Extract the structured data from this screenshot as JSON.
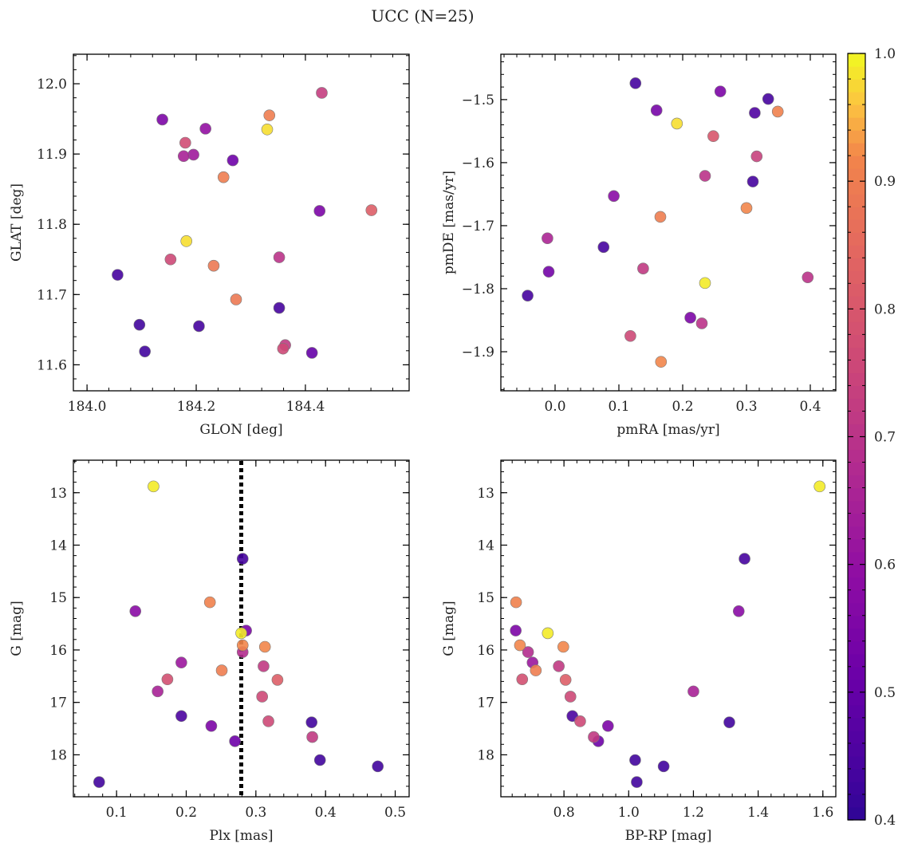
{
  "figure": {
    "title": "UCC (N=25)"
  },
  "colormap": "plasma",
  "colorbar": {
    "range": [
      0.4,
      1.0
    ],
    "ticks": [
      "0.4",
      "0.5",
      "0.6",
      "0.7",
      "0.8",
      "0.9",
      "1.0"
    ]
  },
  "chart_data": [
    {
      "type": "scatter",
      "xlabel": "GLON [deg]",
      "ylabel": "GLAT [deg]",
      "xlim": [
        183.975,
        184.59
      ],
      "ylim": [
        11.563,
        12.042
      ],
      "xticks": [
        "184.0",
        "184.2",
        "184.4"
      ],
      "yticks": [
        "11.6",
        "11.7",
        "11.8",
        "11.9",
        "12.0"
      ],
      "points": [
        {
          "x": 184.43,
          "y": 11.987,
          "c": 0.73
        },
        {
          "x": 184.334,
          "y": 11.955,
          "c": 0.9
        },
        {
          "x": 184.138,
          "y": 11.949,
          "c": 0.55
        },
        {
          "x": 184.217,
          "y": 11.936,
          "c": 0.6
        },
        {
          "x": 184.33,
          "y": 11.935,
          "c": 0.98
        },
        {
          "x": 184.18,
          "y": 11.916,
          "c": 0.77
        },
        {
          "x": 184.195,
          "y": 11.899,
          "c": 0.63
        },
        {
          "x": 184.177,
          "y": 11.897,
          "c": 0.65
        },
        {
          "x": 184.267,
          "y": 11.891,
          "c": 0.52
        },
        {
          "x": 184.25,
          "y": 11.867,
          "c": 0.9
        },
        {
          "x": 184.426,
          "y": 11.819,
          "c": 0.55
        },
        {
          "x": 184.521,
          "y": 11.82,
          "c": 0.82
        },
        {
          "x": 184.182,
          "y": 11.776,
          "c": 0.98
        },
        {
          "x": 184.153,
          "y": 11.75,
          "c": 0.76
        },
        {
          "x": 184.352,
          "y": 11.753,
          "c": 0.7
        },
        {
          "x": 184.232,
          "y": 11.741,
          "c": 0.89
        },
        {
          "x": 184.056,
          "y": 11.728,
          "c": 0.44
        },
        {
          "x": 184.273,
          "y": 11.693,
          "c": 0.89
        },
        {
          "x": 184.352,
          "y": 11.681,
          "c": 0.44
        },
        {
          "x": 184.096,
          "y": 11.657,
          "c": 0.43
        },
        {
          "x": 184.205,
          "y": 11.655,
          "c": 0.44
        },
        {
          "x": 184.363,
          "y": 11.628,
          "c": 0.72
        },
        {
          "x": 184.359,
          "y": 11.623,
          "c": 0.76
        },
        {
          "x": 184.106,
          "y": 11.619,
          "c": 0.43
        },
        {
          "x": 184.412,
          "y": 11.617,
          "c": 0.5
        }
      ]
    },
    {
      "type": "scatter",
      "xlabel": "pmRA [mas/yr]",
      "ylabel": "pmDE [mas/yr]",
      "xlim": [
        -0.085,
        0.44
      ],
      "ylim": [
        -1.962,
        -1.428
      ],
      "xticks": [
        "0.0",
        "0.1",
        "0.2",
        "0.3",
        "0.4"
      ],
      "yticks": [
        "−1.5",
        "−1.6",
        "−1.7",
        "−1.8",
        "−1.9"
      ],
      "points": [
        {
          "x": 0.126,
          "y": -1.474,
          "c": 0.44
        },
        {
          "x": 0.259,
          "y": -1.487,
          "c": 0.55
        },
        {
          "x": 0.334,
          "y": -1.499,
          "c": 0.44
        },
        {
          "x": 0.159,
          "y": -1.517,
          "c": 0.54
        },
        {
          "x": 0.313,
          "y": -1.521,
          "c": 0.46
        },
        {
          "x": 0.349,
          "y": -1.519,
          "c": 0.91
        },
        {
          "x": 0.191,
          "y": -1.538,
          "c": 0.98
        },
        {
          "x": 0.248,
          "y": -1.558,
          "c": 0.8
        },
        {
          "x": 0.316,
          "y": -1.59,
          "c": 0.74
        },
        {
          "x": 0.235,
          "y": -1.621,
          "c": 0.7
        },
        {
          "x": 0.31,
          "y": -1.63,
          "c": 0.44
        },
        {
          "x": 0.092,
          "y": -1.653,
          "c": 0.58
        },
        {
          "x": 0.3,
          "y": -1.672,
          "c": 0.92
        },
        {
          "x": 0.165,
          "y": -1.686,
          "c": 0.9
        },
        {
          "x": -0.012,
          "y": -1.72,
          "c": 0.66
        },
        {
          "x": 0.076,
          "y": -1.734,
          "c": 0.44
        },
        {
          "x": 0.138,
          "y": -1.768,
          "c": 0.72
        },
        {
          "x": -0.01,
          "y": -1.773,
          "c": 0.53
        },
        {
          "x": 0.396,
          "y": -1.782,
          "c": 0.7
        },
        {
          "x": 0.235,
          "y": -1.791,
          "c": 0.99
        },
        {
          "x": -0.043,
          "y": -1.811,
          "c": 0.44
        },
        {
          "x": 0.212,
          "y": -1.846,
          "c": 0.55
        },
        {
          "x": 0.23,
          "y": -1.855,
          "c": 0.7
        },
        {
          "x": 0.118,
          "y": -1.875,
          "c": 0.76
        },
        {
          "x": 0.166,
          "y": -1.916,
          "c": 0.92
        }
      ]
    },
    {
      "type": "scatter",
      "xlabel": "Plx [mas]",
      "ylabel": "G [mag]",
      "xlim": [
        0.038,
        0.52
      ],
      "ylim": [
        18.8,
        12.38
      ],
      "y_inverted": true,
      "xticks": [
        "0.1",
        "0.2",
        "0.3",
        "0.4",
        "0.5"
      ],
      "yticks": [
        "13",
        "14",
        "15",
        "16",
        "17",
        "18"
      ],
      "vline": {
        "x": 0.279,
        "style": "dotted",
        "color": "#000000"
      },
      "points": [
        {
          "x": 0.153,
          "y": 12.88,
          "c": 0.99
        },
        {
          "x": 0.281,
          "y": 14.26,
          "c": 0.44
        },
        {
          "x": 0.234,
          "y": 15.09,
          "c": 0.91
        },
        {
          "x": 0.127,
          "y": 15.26,
          "c": 0.58
        },
        {
          "x": 0.286,
          "y": 15.63,
          "c": 0.55
        },
        {
          "x": 0.279,
          "y": 15.68,
          "c": 0.99
        },
        {
          "x": 0.281,
          "y": 15.91,
          "c": 0.92
        },
        {
          "x": 0.313,
          "y": 15.94,
          "c": 0.92
        },
        {
          "x": 0.281,
          "y": 16.04,
          "c": 0.68
        },
        {
          "x": 0.193,
          "y": 16.24,
          "c": 0.62
        },
        {
          "x": 0.311,
          "y": 16.31,
          "c": 0.72
        },
        {
          "x": 0.251,
          "y": 16.39,
          "c": 0.9
        },
        {
          "x": 0.173,
          "y": 16.56,
          "c": 0.78
        },
        {
          "x": 0.331,
          "y": 16.57,
          "c": 0.82
        },
        {
          "x": 0.159,
          "y": 16.79,
          "c": 0.65
        },
        {
          "x": 0.309,
          "y": 16.89,
          "c": 0.76
        },
        {
          "x": 0.193,
          "y": 17.26,
          "c": 0.45
        },
        {
          "x": 0.318,
          "y": 17.36,
          "c": 0.76
        },
        {
          "x": 0.38,
          "y": 17.38,
          "c": 0.43
        },
        {
          "x": 0.236,
          "y": 17.45,
          "c": 0.55
        },
        {
          "x": 0.381,
          "y": 17.66,
          "c": 0.72
        },
        {
          "x": 0.27,
          "y": 17.74,
          "c": 0.52
        },
        {
          "x": 0.392,
          "y": 18.1,
          "c": 0.43
        },
        {
          "x": 0.475,
          "y": 18.22,
          "c": 0.43
        },
        {
          "x": 0.075,
          "y": 18.52,
          "c": 0.43
        }
      ]
    },
    {
      "type": "scatter",
      "xlabel": "BP-RP [mag]",
      "ylabel": "G [mag]",
      "xlim": [
        0.605,
        1.64
      ],
      "ylim": [
        18.8,
        12.38
      ],
      "y_inverted": true,
      "xticks": [
        "0.8",
        "1.0",
        "1.2",
        "1.4",
        "1.6"
      ],
      "yticks": [
        "13",
        "14",
        "15",
        "16",
        "17",
        "18"
      ],
      "points": [
        {
          "x": 1.59,
          "y": 12.88,
          "c": 0.99
        },
        {
          "x": 1.358,
          "y": 14.26,
          "c": 0.44
        },
        {
          "x": 0.652,
          "y": 15.09,
          "c": 0.91
        },
        {
          "x": 1.34,
          "y": 15.26,
          "c": 0.58
        },
        {
          "x": 0.651,
          "y": 15.63,
          "c": 0.55
        },
        {
          "x": 0.75,
          "y": 15.68,
          "c": 0.99
        },
        {
          "x": 0.664,
          "y": 15.91,
          "c": 0.92
        },
        {
          "x": 0.798,
          "y": 15.94,
          "c": 0.92
        },
        {
          "x": 0.689,
          "y": 16.04,
          "c": 0.68
        },
        {
          "x": 0.703,
          "y": 16.24,
          "c": 0.62
        },
        {
          "x": 0.784,
          "y": 16.31,
          "c": 0.72
        },
        {
          "x": 0.713,
          "y": 16.39,
          "c": 0.9
        },
        {
          "x": 0.671,
          "y": 16.56,
          "c": 0.78
        },
        {
          "x": 0.805,
          "y": 16.57,
          "c": 0.82
        },
        {
          "x": 1.2,
          "y": 16.79,
          "c": 0.65
        },
        {
          "x": 0.82,
          "y": 16.89,
          "c": 0.76
        },
        {
          "x": 0.826,
          "y": 17.26,
          "c": 0.45
        },
        {
          "x": 0.85,
          "y": 17.36,
          "c": 0.76
        },
        {
          "x": 1.311,
          "y": 17.38,
          "c": 0.43
        },
        {
          "x": 0.936,
          "y": 17.45,
          "c": 0.55
        },
        {
          "x": 0.892,
          "y": 17.66,
          "c": 0.72
        },
        {
          "x": 0.906,
          "y": 17.74,
          "c": 0.52
        },
        {
          "x": 1.02,
          "y": 18.1,
          "c": 0.43
        },
        {
          "x": 1.108,
          "y": 18.22,
          "c": 0.43
        },
        {
          "x": 1.025,
          "y": 18.52,
          "c": 0.43
        }
      ]
    }
  ]
}
